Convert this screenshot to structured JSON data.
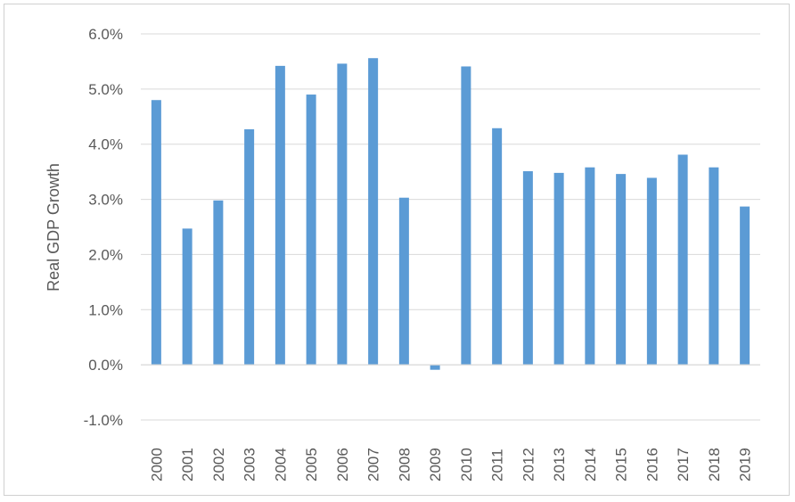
{
  "chart_data": {
    "type": "bar",
    "title": "",
    "xlabel": "",
    "ylabel": "Real GDP Growth",
    "categories": [
      "2000",
      "2001",
      "2002",
      "2003",
      "2004",
      "2005",
      "2006",
      "2007",
      "2008",
      "2009",
      "2010",
      "2011",
      "2012",
      "2013",
      "2014",
      "2015",
      "2016",
      "2017",
      "2018",
      "2019"
    ],
    "values": [
      4.8,
      2.47,
      2.98,
      4.27,
      5.42,
      4.9,
      5.46,
      5.56,
      3.03,
      -0.09,
      5.41,
      4.29,
      3.51,
      3.48,
      3.58,
      3.46,
      3.39,
      3.81,
      3.58,
      2.87
    ],
    "ylim": [
      -1.0,
      6.0
    ],
    "yticks": [
      -1.0,
      0.0,
      1.0,
      2.0,
      3.0,
      4.0,
      5.0,
      6.0
    ],
    "ytick_labels": [
      "-1.0%",
      "0.0%",
      "1.0%",
      "2.0%",
      "3.0%",
      "4.0%",
      "5.0%",
      "6.0%"
    ],
    "grid": true,
    "legend": "none",
    "bar_color": "#5b9bd5",
    "grid_color": "#d9d9d9",
    "zero_line_color": "#d9d9d9"
  }
}
